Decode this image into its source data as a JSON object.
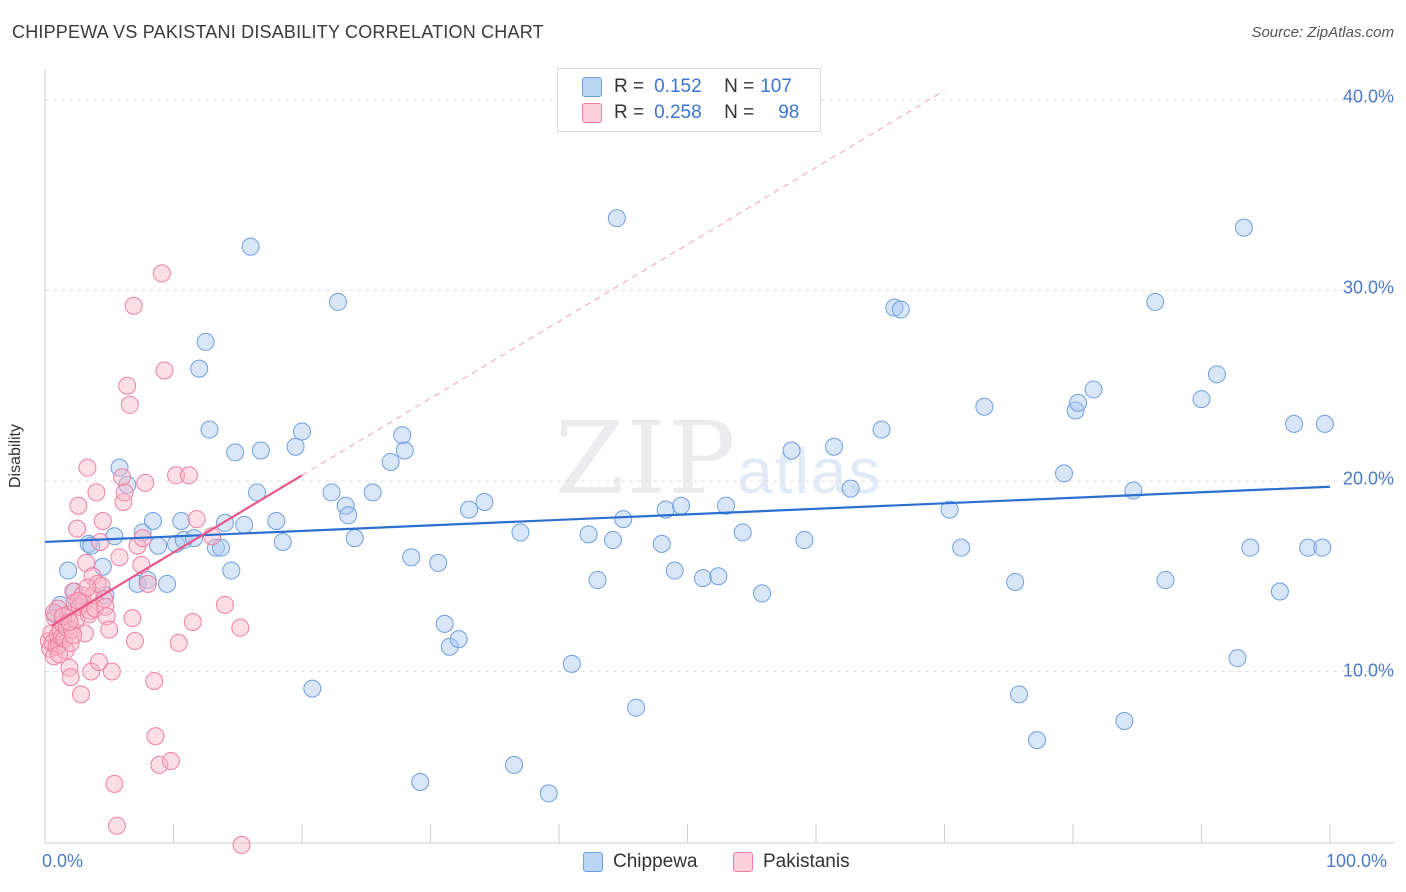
{
  "title": "CHIPPEWA VS PAKISTANI DISABILITY CORRELATION CHART",
  "source": "Source: ZipAtlas.com",
  "watermark": {
    "zip": "ZIP",
    "atlas": "atlas"
  },
  "legend": {
    "rows": [
      {
        "r_label": "R =",
        "r_value": "0.152",
        "n_label": "N =",
        "n_value": "107",
        "color": "#a8c8f0"
      },
      {
        "r_label": "R =",
        "r_value": "0.258",
        "n_label": "N =",
        "n_value": "98",
        "color": "#f7b6c8"
      }
    ]
  },
  "bottom_legend": [
    {
      "label": "Chippewa",
      "color": "#a8c8f0"
    },
    {
      "label": "Pakistanis",
      "color": "#f7b6c8"
    }
  ],
  "chart_data": {
    "type": "scatter",
    "title": "CHIPPEWA VS PAKISTANI DISABILITY CORRELATION CHART",
    "xlabel": "",
    "ylabel": "Disability",
    "xlim": [
      0,
      100
    ],
    "ylim": [
      0,
      42
    ],
    "y_ticks": [
      {
        "value": 10,
        "label": "10.0%"
      },
      {
        "value": 20,
        "label": "20.0%"
      },
      {
        "value": 30,
        "label": "30.0%"
      },
      {
        "value": 40,
        "label": "40.0%"
      }
    ],
    "x_tick_labels": [
      {
        "value": 0,
        "label": "0.0%"
      },
      {
        "value": 100,
        "label": "100.0%"
      }
    ],
    "x_minor_ticks": [
      0,
      10,
      20,
      30,
      40,
      50,
      60,
      70,
      80,
      90,
      100
    ],
    "grid": true,
    "series": [
      {
        "name": "Chippewa",
        "color": "#6f9fe0",
        "fill": "#a8c8f0",
        "trend": {
          "x": [
            0,
            100
          ],
          "y": [
            16.8,
            19.7
          ],
          "color": "#2b6fd0"
        },
        "points": [
          [
            0.8,
            13.0
          ],
          [
            1.2,
            13.5
          ],
          [
            1.8,
            15.3
          ],
          [
            2.3,
            14.2
          ],
          [
            2.8,
            13.7
          ],
          [
            3.4,
            16.7
          ],
          [
            3.6,
            16.6
          ],
          [
            4.5,
            15.5
          ],
          [
            4.7,
            14.0
          ],
          [
            5.4,
            17.1
          ],
          [
            5.8,
            20.7
          ],
          [
            6.4,
            19.8
          ],
          [
            7.2,
            14.6
          ],
          [
            7.6,
            17.3
          ],
          [
            8.0,
            14.8
          ],
          [
            8.4,
            17.9
          ],
          [
            8.8,
            16.6
          ],
          [
            9.5,
            14.6
          ],
          [
            10.2,
            16.7
          ],
          [
            10.6,
            17.9
          ],
          [
            10.8,
            16.9
          ],
          [
            11.6,
            17.0
          ],
          [
            12.0,
            25.9
          ],
          [
            12.5,
            27.3
          ],
          [
            12.8,
            22.7
          ],
          [
            13.3,
            16.5
          ],
          [
            13.7,
            16.5
          ],
          [
            14.0,
            17.8
          ],
          [
            14.5,
            15.3
          ],
          [
            14.8,
            21.5
          ],
          [
            15.5,
            17.7
          ],
          [
            16.0,
            32.3
          ],
          [
            16.5,
            19.4
          ],
          [
            16.8,
            21.6
          ],
          [
            18.0,
            17.9
          ],
          [
            18.5,
            16.8
          ],
          [
            19.5,
            21.8
          ],
          [
            20.0,
            22.6
          ],
          [
            20.8,
            9.1
          ],
          [
            22.3,
            19.4
          ],
          [
            22.8,
            29.4
          ],
          [
            23.4,
            18.7
          ],
          [
            23.6,
            18.2
          ],
          [
            24.1,
            17.0
          ],
          [
            25.5,
            19.4
          ],
          [
            26.9,
            21.0
          ],
          [
            27.8,
            22.4
          ],
          [
            28.0,
            21.6
          ],
          [
            28.5,
            16.0
          ],
          [
            29.2,
            4.2
          ],
          [
            30.6,
            15.7
          ],
          [
            31.1,
            12.5
          ],
          [
            31.5,
            11.3
          ],
          [
            32.2,
            11.7
          ],
          [
            33.0,
            18.5
          ],
          [
            34.2,
            18.9
          ],
          [
            36.5,
            5.1
          ],
          [
            37.0,
            17.3
          ],
          [
            39.2,
            3.6
          ],
          [
            41.0,
            10.4
          ],
          [
            42.3,
            17.2
          ],
          [
            43.0,
            14.8
          ],
          [
            44.2,
            16.9
          ],
          [
            44.5,
            33.8
          ],
          [
            45.0,
            18.0
          ],
          [
            46.0,
            8.1
          ],
          [
            48.0,
            16.7
          ],
          [
            48.3,
            18.5
          ],
          [
            49.0,
            15.3
          ],
          [
            49.5,
            18.7
          ],
          [
            51.2,
            14.9
          ],
          [
            52.4,
            15.0
          ],
          [
            53.0,
            18.7
          ],
          [
            54.3,
            17.3
          ],
          [
            55.8,
            14.1
          ],
          [
            58.1,
            21.6
          ],
          [
            59.1,
            16.9
          ],
          [
            61.4,
            21.8
          ],
          [
            62.7,
            19.6
          ],
          [
            65.1,
            22.7
          ],
          [
            66.1,
            29.1
          ],
          [
            66.6,
            29.0
          ],
          [
            70.4,
            18.5
          ],
          [
            71.3,
            16.5
          ],
          [
            73.1,
            23.9
          ],
          [
            75.5,
            14.7
          ],
          [
            75.8,
            8.8
          ],
          [
            77.2,
            6.4
          ],
          [
            79.3,
            20.4
          ],
          [
            80.2,
            23.7
          ],
          [
            80.4,
            24.1
          ],
          [
            81.6,
            24.8
          ],
          [
            84.0,
            7.4
          ],
          [
            84.7,
            19.5
          ],
          [
            86.4,
            29.4
          ],
          [
            87.2,
            14.8
          ],
          [
            90.0,
            24.3
          ],
          [
            91.2,
            25.6
          ],
          [
            92.8,
            10.7
          ],
          [
            93.3,
            33.3
          ],
          [
            93.8,
            16.5
          ],
          [
            96.1,
            14.2
          ],
          [
            97.2,
            23.0
          ],
          [
            98.3,
            16.5
          ],
          [
            99.4,
            16.5
          ],
          [
            99.6,
            23.0
          ]
        ]
      },
      {
        "name": "Pakistanis",
        "color": "#f07fa1",
        "fill": "#f7b6c8",
        "trend": {
          "x": [
            0.5,
            20
          ],
          "y": [
            12.4,
            20.3
          ],
          "color": "#e8568a",
          "dashed_extension": {
            "x": [
              20,
              70
            ],
            "y": [
              20.3,
              40.5
            ]
          }
        },
        "points": [
          [
            0.3,
            11.6
          ],
          [
            0.4,
            11.2
          ],
          [
            0.5,
            12.0
          ],
          [
            0.6,
            11.5
          ],
          [
            0.7,
            10.8
          ],
          [
            0.8,
            12.8
          ],
          [
            0.9,
            11.3
          ],
          [
            1.0,
            11.9
          ],
          [
            1.0,
            13.3
          ],
          [
            1.1,
            11.4
          ],
          [
            1.2,
            12.1
          ],
          [
            1.3,
            11.8
          ],
          [
            1.4,
            12.5
          ],
          [
            1.5,
            11.7
          ],
          [
            1.6,
            11.1
          ],
          [
            1.7,
            12.3
          ],
          [
            1.8,
            13.0
          ],
          [
            1.9,
            10.2
          ],
          [
            2.0,
            11.5
          ],
          [
            2.0,
            9.7
          ],
          [
            2.1,
            12.2
          ],
          [
            2.2,
            14.2
          ],
          [
            2.3,
            13.6
          ],
          [
            2.4,
            12.7
          ],
          [
            2.5,
            17.5
          ],
          [
            2.6,
            18.7
          ],
          [
            2.7,
            13.4
          ],
          [
            2.8,
            8.8
          ],
          [
            2.9,
            14.0
          ],
          [
            3.0,
            13.6
          ],
          [
            3.1,
            12.0
          ],
          [
            3.2,
            15.7
          ],
          [
            3.3,
            20.7
          ],
          [
            3.4,
            13.0
          ],
          [
            3.5,
            13.2
          ],
          [
            3.6,
            10.0
          ],
          [
            3.7,
            15.0
          ],
          [
            3.8,
            14.0
          ],
          [
            3.9,
            13.3
          ],
          [
            4.0,
            19.4
          ],
          [
            4.1,
            14.6
          ],
          [
            4.2,
            10.5
          ],
          [
            4.3,
            16.8
          ],
          [
            4.4,
            14.5
          ],
          [
            4.5,
            17.9
          ],
          [
            4.6,
            13.8
          ],
          [
            4.7,
            13.4
          ],
          [
            4.8,
            12.9
          ],
          [
            5.0,
            12.2
          ],
          [
            5.2,
            10.0
          ],
          [
            5.4,
            4.1
          ],
          [
            5.6,
            1.9
          ],
          [
            5.8,
            16.0
          ],
          [
            6.0,
            20.2
          ],
          [
            6.1,
            18.9
          ],
          [
            6.2,
            19.4
          ],
          [
            6.4,
            25.0
          ],
          [
            6.6,
            24.0
          ],
          [
            6.8,
            12.8
          ],
          [
            6.9,
            29.2
          ],
          [
            7.0,
            11.6
          ],
          [
            7.2,
            16.6
          ],
          [
            7.5,
            15.6
          ],
          [
            7.6,
            17.0
          ],
          [
            7.8,
            19.9
          ],
          [
            8.0,
            14.6
          ],
          [
            8.5,
            9.5
          ],
          [
            8.6,
            6.6
          ],
          [
            8.9,
            5.1
          ],
          [
            9.1,
            30.9
          ],
          [
            9.3,
            25.8
          ],
          [
            9.8,
            5.3
          ],
          [
            10.2,
            20.3
          ],
          [
            10.4,
            11.5
          ],
          [
            11.2,
            20.3
          ],
          [
            11.8,
            18.0
          ],
          [
            11.5,
            12.6
          ],
          [
            13.0,
            17.1
          ],
          [
            14.0,
            13.5
          ],
          [
            15.2,
            12.3
          ],
          [
            15.3,
            0.9
          ],
          [
            0.7,
            13.1
          ],
          [
            1.4,
            12.9
          ],
          [
            2.2,
            11.9
          ],
          [
            2.6,
            13.7
          ],
          [
            3.3,
            14.4
          ],
          [
            1.1,
            10.9
          ],
          [
            1.9,
            12.6
          ]
        ]
      }
    ]
  }
}
